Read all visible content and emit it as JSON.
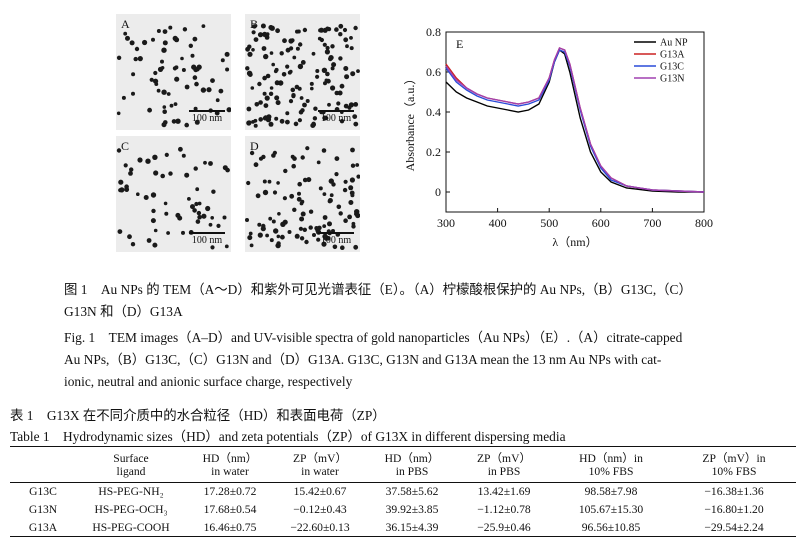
{
  "figure": {
    "panels": [
      {
        "label": "A",
        "scale": "100 nm"
      },
      {
        "label": "B",
        "scale": "100 nm"
      },
      {
        "label": "C",
        "scale": "100 nm"
      },
      {
        "label": "D",
        "scale": "100 nm"
      }
    ]
  },
  "chart_data": {
    "type": "line",
    "panel_label": "E",
    "xlabel": "λ（nm）",
    "ylabel": "Absorbance（a.u.）",
    "xlim": [
      300,
      800
    ],
    "ylim": [
      -0.1,
      0.8
    ],
    "xticks": [
      "300",
      "400",
      "500",
      "600",
      "700",
      "800"
    ],
    "yticks": [
      "0",
      "0.2",
      "0.4",
      "0.6",
      "0.8"
    ],
    "legend_position": "top-right",
    "x": [
      300,
      320,
      340,
      360,
      380,
      400,
      420,
      440,
      460,
      480,
      500,
      510,
      520,
      530,
      540,
      560,
      580,
      600,
      620,
      650,
      700,
      750,
      800
    ],
    "series": [
      {
        "name": "Au NP",
        "color": "#000000",
        "values": [
          0.55,
          0.5,
          0.47,
          0.45,
          0.43,
          0.42,
          0.41,
          0.4,
          0.41,
          0.44,
          0.55,
          0.65,
          0.71,
          0.69,
          0.6,
          0.37,
          0.2,
          0.1,
          0.05,
          0.02,
          0.005,
          0.0,
          0.0
        ]
      },
      {
        "name": "G13A",
        "color": "#cc2222",
        "values": [
          0.64,
          0.57,
          0.52,
          0.49,
          0.47,
          0.46,
          0.45,
          0.44,
          0.45,
          0.47,
          0.57,
          0.66,
          0.72,
          0.71,
          0.64,
          0.42,
          0.24,
          0.13,
          0.07,
          0.03,
          0.01,
          0.005,
          0.0
        ]
      },
      {
        "name": "G13C",
        "color": "#2a4bd8",
        "values": [
          0.62,
          0.55,
          0.51,
          0.48,
          0.46,
          0.45,
          0.44,
          0.43,
          0.44,
          0.46,
          0.56,
          0.65,
          0.71,
          0.7,
          0.63,
          0.41,
          0.23,
          0.12,
          0.06,
          0.03,
          0.01,
          0.005,
          0.0
        ]
      },
      {
        "name": "G13N",
        "color": "#a040b0",
        "values": [
          0.63,
          0.56,
          0.52,
          0.49,
          0.47,
          0.46,
          0.45,
          0.44,
          0.45,
          0.47,
          0.57,
          0.66,
          0.72,
          0.71,
          0.64,
          0.42,
          0.24,
          0.13,
          0.07,
          0.03,
          0.01,
          0.005,
          0.0
        ]
      }
    ]
  },
  "caption": {
    "cn_line1": "图 1　Au NPs 的 TEM（A～D）和紫外可见光谱表征（E）。（A）柠檬酸根保护的 Au NPs,（B）G13C,（C）",
    "cn_line2": "G13N 和（D）G13A",
    "en_line1": "Fig. 1　TEM images（A–D）and UV-visible spectra of gold nanoparticles（Au NPs）（E）.（A）citrate-capped",
    "en_line2": "Au NPs,（B）G13C,（C）G13N and（D）G13A. G13C, G13N and G13A mean the 13 nm Au NPs with cat-",
    "en_line3": "ionic, neutral and anionic surface charge, respectively"
  },
  "table": {
    "title_cn": "表 1　G13X 在不同介质中的水合粒径（HD）和表面电荷（ZP）",
    "title_en": "Table 1　Hydrodynamic sizes（HD）and zeta potentials（ZP）of G13X in different dispersing media",
    "headers": [
      [
        "",
        ""
      ],
      [
        "Surface",
        "ligand"
      ],
      [
        "HD（nm）",
        "in water"
      ],
      [
        "ZP（mV）",
        "in water"
      ],
      [
        "HD（nm）",
        "in PBS"
      ],
      [
        "ZP（mV）",
        "in PBS"
      ],
      [
        "HD（nm）in",
        "10% FBS"
      ],
      [
        "ZP（mV）in",
        "10% FBS"
      ]
    ],
    "rows": [
      [
        "G13C",
        "HS-PEG-NH₂",
        "17.28±0.72",
        "15.42±0.67",
        "37.58±5.62",
        "13.42±1.69",
        "98.58±7.98",
        "−16.38±1.36"
      ],
      [
        "G13N",
        "HS-PEG-OCH₃",
        "17.68±0.54",
        "−0.12±0.43",
        "39.92±3.85",
        "−1.12±0.78",
        "105.67±15.30",
        "−16.80±1.20"
      ],
      [
        "G13A",
        "HS-PEG-COOH",
        "16.46±0.75",
        "−22.60±0.13",
        "36.15±4.39",
        "−25.9±0.46",
        "96.56±10.85",
        "−29.54±2.24"
      ]
    ]
  }
}
